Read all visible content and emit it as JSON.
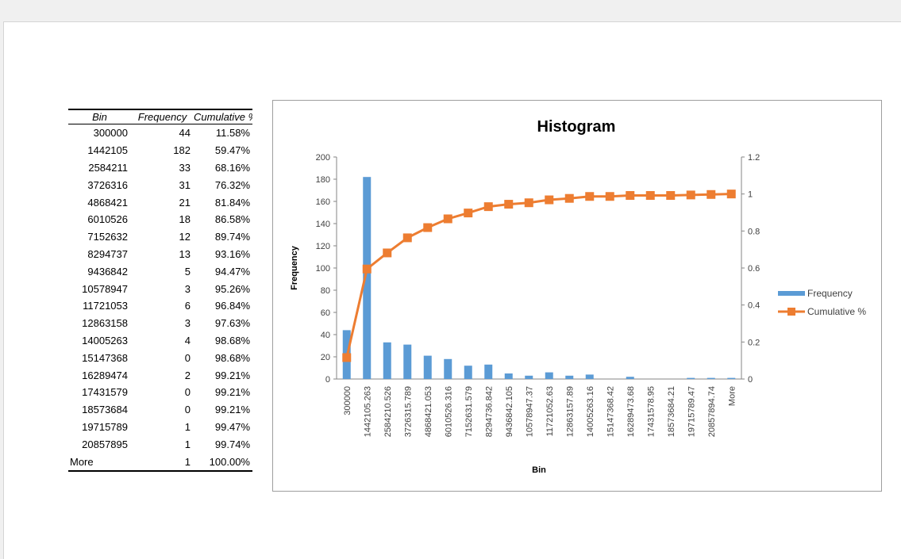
{
  "table": {
    "headers": [
      "Bin",
      "Frequency",
      "Cumulative %"
    ],
    "rows": [
      {
        "bin": "300000",
        "freq": "44",
        "cum": "11.58%"
      },
      {
        "bin": "1442105",
        "freq": "182",
        "cum": "59.47%"
      },
      {
        "bin": "2584211",
        "freq": "33",
        "cum": "68.16%"
      },
      {
        "bin": "3726316",
        "freq": "31",
        "cum": "76.32%"
      },
      {
        "bin": "4868421",
        "freq": "21",
        "cum": "81.84%"
      },
      {
        "bin": "6010526",
        "freq": "18",
        "cum": "86.58%"
      },
      {
        "bin": "7152632",
        "freq": "12",
        "cum": "89.74%"
      },
      {
        "bin": "8294737",
        "freq": "13",
        "cum": "93.16%"
      },
      {
        "bin": "9436842",
        "freq": "5",
        "cum": "94.47%"
      },
      {
        "bin": "10578947",
        "freq": "3",
        "cum": "95.26%"
      },
      {
        "bin": "11721053",
        "freq": "6",
        "cum": "96.84%"
      },
      {
        "bin": "12863158",
        "freq": "3",
        "cum": "97.63%"
      },
      {
        "bin": "14005263",
        "freq": "4",
        "cum": "98.68%"
      },
      {
        "bin": "15147368",
        "freq": "0",
        "cum": "98.68%"
      },
      {
        "bin": "16289474",
        "freq": "2",
        "cum": "99.21%"
      },
      {
        "bin": "17431579",
        "freq": "0",
        "cum": "99.21%"
      },
      {
        "bin": "18573684",
        "freq": "0",
        "cum": "99.21%"
      },
      {
        "bin": "19715789",
        "freq": "1",
        "cum": "99.47%"
      },
      {
        "bin": "20857895",
        "freq": "1",
        "cum": "99.74%"
      },
      {
        "bin": "More",
        "freq": "1",
        "cum": "100.00%"
      }
    ]
  },
  "chart_data": {
    "type": "bar",
    "title": "Histogram",
    "xlabel": "Bin",
    "ylabel": "Frequency",
    "categories": [
      "300000",
      "1442105.263",
      "2584210.526",
      "3726315.789",
      "4868421.053",
      "6010526.316",
      "7152631.579",
      "8294736.842",
      "9436842.105",
      "10578947.37",
      "11721052.63",
      "12863157.89",
      "14005263.16",
      "15147368.42",
      "16289473.68",
      "17431578.95",
      "18573684.21",
      "19715789.47",
      "20857894.74",
      "More"
    ],
    "series": [
      {
        "name": "Frequency",
        "type": "bar",
        "axis": "left",
        "color": "#5b9bd5",
        "values": [
          44,
          182,
          33,
          31,
          21,
          18,
          12,
          13,
          5,
          3,
          6,
          3,
          4,
          0,
          2,
          0,
          0,
          1,
          1,
          1
        ]
      },
      {
        "name": "Cumulative %",
        "type": "line",
        "axis": "right",
        "color": "#ed7d31",
        "values": [
          0.1158,
          0.5947,
          0.6816,
          0.7632,
          0.8184,
          0.8658,
          0.8974,
          0.9316,
          0.9447,
          0.9526,
          0.9684,
          0.9763,
          0.9868,
          0.9868,
          0.9921,
          0.9921,
          0.9921,
          0.9947,
          0.9974,
          1.0
        ]
      }
    ],
    "ylim_left": [
      0,
      200
    ],
    "yticks_left": [
      "0",
      "20",
      "40",
      "60",
      "80",
      "100",
      "120",
      "140",
      "160",
      "180",
      "200"
    ],
    "ylim_right": [
      0,
      1.2
    ],
    "yticks_right": [
      "0",
      "0.2",
      "0.4",
      "0.6",
      "0.8",
      "1",
      "1.2"
    ],
    "legend": "right",
    "grid": false
  }
}
